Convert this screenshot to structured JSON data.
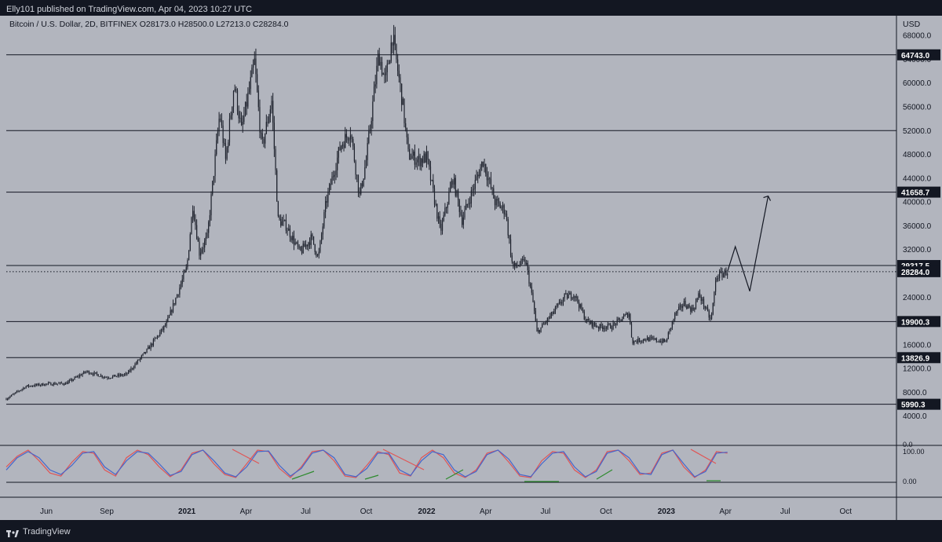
{
  "header": {
    "publish_line": "Elly101 published on TradingView.com, Apr 04, 2023 10:27 UTC"
  },
  "footer": {
    "brand": "TradingView"
  },
  "chart": {
    "symbol_line": "Bitcoin / U.S. Dollar, 2D, BITFINEX  O28173.0  H28500.0  L27213.0  C28284.0",
    "currency": "USD",
    "colors": {
      "background": "#b2b5be",
      "frame": "#131722",
      "candle": "#1e222d",
      "text": "#131722",
      "osc_red": "#e05555",
      "osc_blue": "#4466cc",
      "osc_green": "#2e8b2e"
    }
  },
  "chart_data": [
    {
      "type": "candlestick",
      "title": "Bitcoin / U.S. Dollar, 2D, BITFINEX",
      "ohlc_last": {
        "open": 28173.0,
        "high": 28500.0,
        "low": 27213.0,
        "close": 28284.0
      },
      "ylim": [
        0,
        70000
      ],
      "y_ticks": [
        4000,
        8000,
        12000,
        16000,
        20000,
        24000,
        28000,
        32000,
        36000,
        40000,
        44000,
        48000,
        52000,
        56000,
        60000,
        64000,
        68000
      ],
      "y_tick_labels": [
        "4000.0",
        "8000.0",
        "12000.0",
        "16000.0",
        "20000.0",
        "24000.0",
        "28000.0",
        "32000.0",
        "36000.0",
        "40000.0",
        "44000.0",
        "48000.0",
        "52000.0",
        "56000.0",
        "60000.0",
        "64000.0",
        "68000.0"
      ],
      "x_ticks": [
        "Jun",
        "Sep",
        "2021",
        "Apr",
        "Jul",
        "Oct",
        "2022",
        "Apr",
        "Jul",
        "Oct",
        "2023",
        "Apr",
        "Jul",
        "Oct"
      ],
      "x_tick_dates": [
        "2020-06-01",
        "2020-09-01",
        "2021-01-01",
        "2021-04-01",
        "2021-07-01",
        "2021-10-01",
        "2022-01-01",
        "2022-04-01",
        "2022-07-01",
        "2022-10-01",
        "2023-01-01",
        "2023-04-01",
        "2023-07-01",
        "2023-10-01"
      ],
      "close_path": [
        [
          "2020-04-01",
          6900
        ],
        [
          "2020-05-01",
          9000
        ],
        [
          "2020-06-01",
          9400
        ],
        [
          "2020-07-01",
          9500
        ],
        [
          "2020-08-01",
          11500
        ],
        [
          "2020-09-01",
          10500
        ],
        [
          "2020-10-01",
          11000
        ],
        [
          "2020-11-01",
          15000
        ],
        [
          "2020-12-01",
          19500
        ],
        [
          "2021-01-01",
          29000
        ],
        [
          "2021-01-10",
          39500
        ],
        [
          "2021-01-20",
          31500
        ],
        [
          "2021-02-01",
          34000
        ],
        [
          "2021-02-20",
          55000
        ],
        [
          "2021-03-01",
          47000
        ],
        [
          "2021-03-14",
          60000
        ],
        [
          "2021-03-25",
          52000
        ],
        [
          "2021-04-14",
          63500
        ],
        [
          "2021-04-25",
          49000
        ],
        [
          "2021-05-10",
          57000
        ],
        [
          "2021-05-20",
          37000
        ],
        [
          "2021-06-01",
          36000
        ],
        [
          "2021-06-22",
          31500
        ],
        [
          "2021-07-10",
          34000
        ],
        [
          "2021-07-20",
          30500
        ],
        [
          "2021-08-01",
          40000
        ],
        [
          "2021-08-23",
          49500
        ],
        [
          "2021-09-07",
          52000
        ],
        [
          "2021-09-21",
          41000
        ],
        [
          "2021-10-01",
          47000
        ],
        [
          "2021-10-20",
          65000
        ],
        [
          "2021-10-30",
          60000
        ],
        [
          "2021-11-10",
          68000
        ],
        [
          "2021-11-25",
          57000
        ],
        [
          "2021-12-04",
          48000
        ],
        [
          "2021-12-20",
          47000
        ],
        [
          "2022-01-01",
          47500
        ],
        [
          "2022-01-22",
          35000
        ],
        [
          "2022-02-10",
          44000
        ],
        [
          "2022-02-24",
          37000
        ],
        [
          "2022-03-28",
          47000
        ],
        [
          "2022-04-15",
          40000
        ],
        [
          "2022-05-01",
          38500
        ],
        [
          "2022-05-12",
          29000
        ],
        [
          "2022-06-01",
          30000
        ],
        [
          "2022-06-13",
          22500
        ],
        [
          "2022-06-18",
          18000
        ],
        [
          "2022-07-10",
          21000
        ],
        [
          "2022-07-30",
          24000
        ],
        [
          "2022-08-14",
          24500
        ],
        [
          "2022-09-01",
          20000
        ],
        [
          "2022-09-20",
          19000
        ],
        [
          "2022-10-10",
          19100
        ],
        [
          "2022-11-05",
          21300
        ],
        [
          "2022-11-10",
          16500
        ],
        [
          "2022-12-01",
          17000
        ],
        [
          "2022-12-31",
          16500
        ],
        [
          "2023-01-14",
          21000
        ],
        [
          "2023-01-28",
          23000
        ],
        [
          "2023-02-10",
          21800
        ],
        [
          "2023-02-20",
          24500
        ],
        [
          "2023-03-10",
          20000
        ],
        [
          "2023-03-18",
          27500
        ],
        [
          "2023-04-04",
          28284
        ]
      ],
      "horizontal_levels": [
        64743.0,
        52000.0,
        41658.7,
        29317.5,
        19900.3,
        13826.9,
        5990.3
      ],
      "price_labels": [
        {
          "value": 64743.0,
          "label": "64743.0"
        },
        {
          "value": 41658.7,
          "label": "41658.7"
        },
        {
          "value": 29317.5,
          "label": "29317.5"
        },
        {
          "value": 28284.0,
          "label": "28284.0",
          "current": true
        },
        {
          "value": 19900.3,
          "label": "19900.3"
        },
        {
          "value": 13826.9,
          "label": "13826.9"
        },
        {
          "value": 5990.3,
          "label": "5990.3"
        }
      ],
      "projection_path": [
        [
          "2023-04-04",
          28284
        ],
        [
          "2023-04-16",
          32500
        ],
        [
          "2023-05-08",
          25000
        ],
        [
          "2023-06-05",
          41000
        ]
      ]
    },
    {
      "type": "line",
      "title": "",
      "ylim": [
        0,
        100
      ],
      "y_tick_labels": [
        "0.0",
        "100.00",
        "0.00"
      ],
      "series": [
        {
          "color": "#e05555",
          "values": [
            40,
            75,
            95,
            60,
            20,
            10,
            55,
            90,
            85,
            30,
            10,
            70,
            95,
            80,
            40,
            8,
            30,
            85,
            95,
            50,
            15,
            5,
            50,
            95,
            90,
            35,
            5,
            40,
            90,
            95,
            60,
            10,
            5,
            45,
            90,
            80,
            20,
            10,
            70,
            95,
            70,
            20,
            5,
            30,
            85,
            95,
            55,
            10,
            5,
            60,
            90,
            85,
            30,
            5,
            30,
            90,
            95,
            60,
            15,
            20,
            85,
            95,
            40,
            5,
            30,
            90,
            85
          ]
        },
        {
          "color": "#4466cc",
          "values": [
            30,
            70,
            90,
            70,
            30,
            15,
            45,
            85,
            90,
            40,
            15,
            60,
            90,
            85,
            50,
            12,
            25,
            80,
            95,
            60,
            20,
            8,
            40,
            90,
            92,
            45,
            10,
            35,
            85,
            95,
            70,
            15,
            8,
            35,
            85,
            85,
            30,
            12,
            60,
            90,
            80,
            30,
            8,
            25,
            80,
            95,
            65,
            15,
            8,
            50,
            85,
            90,
            40,
            8,
            25,
            85,
            95,
            70,
            20,
            15,
            80,
            95,
            50,
            8,
            25,
            85,
            88
          ]
        }
      ]
    }
  ]
}
